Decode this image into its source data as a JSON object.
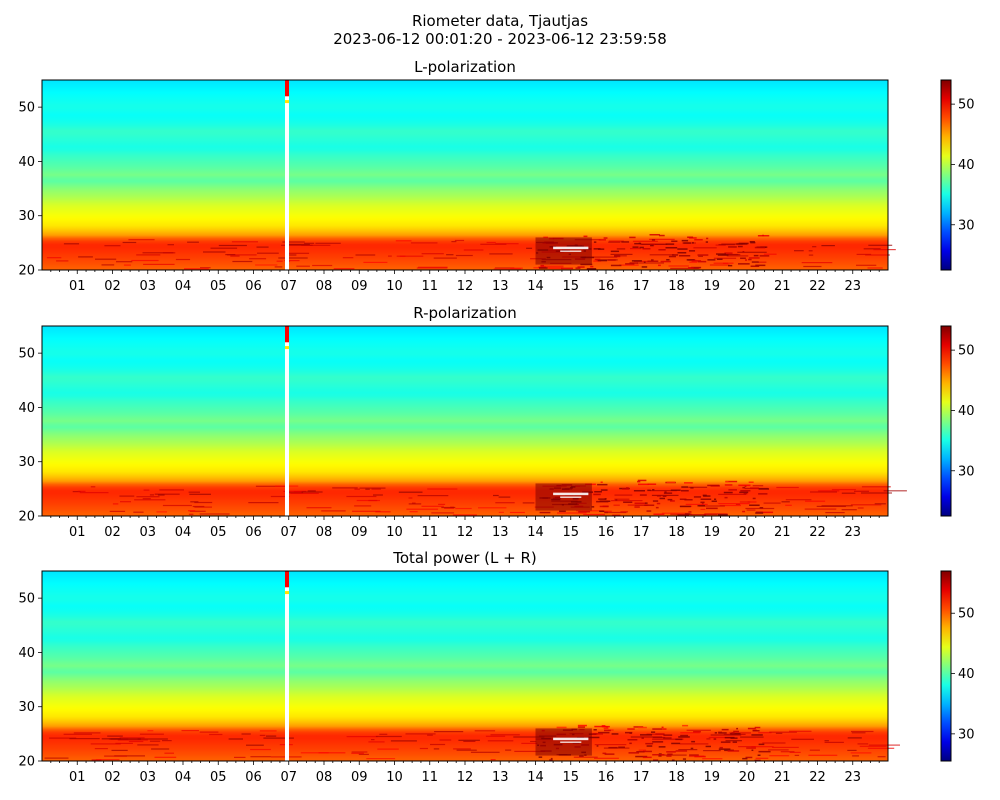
{
  "figure": {
    "title": "Riometer data, Tjautjas",
    "subtitle": "2023-06-12 00:01:20 - 2023-06-12 23:59:58"
  },
  "colors": {
    "colormap": "jet",
    "gap_color": "#ffffff"
  },
  "chart_data": [
    {
      "type": "heatmap",
      "title": "L-polarization",
      "xlabel": "",
      "ylabel": "",
      "xlim": [
        0,
        24
      ],
      "ylim": [
        20,
        55
      ],
      "x_ticks": [
        "01",
        "02",
        "03",
        "04",
        "05",
        "06",
        "07",
        "08",
        "09",
        "10",
        "11",
        "12",
        "13",
        "14",
        "15",
        "16",
        "17",
        "18",
        "19",
        "20",
        "21",
        "22",
        "23"
      ],
      "y_ticks": [
        20,
        30,
        40,
        50
      ],
      "colorbar": {
        "range": [
          22.5,
          54
        ],
        "ticks": [
          30,
          40,
          50
        ]
      },
      "gap_hour": 6.95,
      "band_profile": [
        [
          20,
          47
        ],
        [
          22,
          48
        ],
        [
          24.5,
          49
        ],
        [
          25.5,
          48
        ],
        [
          26.5,
          45
        ],
        [
          28,
          43
        ],
        [
          30,
          42
        ],
        [
          32,
          41
        ],
        [
          33,
          40
        ],
        [
          35,
          38.5
        ],
        [
          36.5,
          37
        ],
        [
          37.5,
          38
        ],
        [
          39,
          37
        ],
        [
          41,
          36
        ],
        [
          42.5,
          35
        ],
        [
          44,
          35.5
        ],
        [
          45.5,
          36
        ],
        [
          47,
          35
        ],
        [
          48.5,
          34.5
        ],
        [
          50,
          35
        ],
        [
          52,
          34.5
        ],
        [
          53.5,
          34
        ],
        [
          55,
          33.5
        ]
      ],
      "enhancement": {
        "center_hour": 15.0,
        "start_hour": 14.0,
        "end_hour": 15.6,
        "amplitude": 6
      },
      "grid": false
    },
    {
      "type": "heatmap",
      "title": "R-polarization",
      "xlabel": "",
      "ylabel": "",
      "xlim": [
        0,
        24
      ],
      "ylim": [
        20,
        55
      ],
      "x_ticks": [
        "01",
        "02",
        "03",
        "04",
        "05",
        "06",
        "07",
        "08",
        "09",
        "10",
        "11",
        "12",
        "13",
        "14",
        "15",
        "16",
        "17",
        "18",
        "19",
        "20",
        "21",
        "22",
        "23"
      ],
      "y_ticks": [
        20,
        30,
        40,
        50
      ],
      "colorbar": {
        "range": [
          22.5,
          54
        ],
        "ticks": [
          30,
          40,
          50
        ]
      },
      "gap_hour": 6.95,
      "band_profile": [
        [
          20,
          47
        ],
        [
          22,
          48
        ],
        [
          24.5,
          49
        ],
        [
          25.5,
          48
        ],
        [
          26.5,
          45
        ],
        [
          28,
          43
        ],
        [
          30,
          42
        ],
        [
          32,
          41
        ],
        [
          33,
          40
        ],
        [
          35,
          38.5
        ],
        [
          36.5,
          37
        ],
        [
          37.5,
          38
        ],
        [
          39,
          37
        ],
        [
          41,
          36
        ],
        [
          42.5,
          35
        ],
        [
          44,
          35.5
        ],
        [
          45.5,
          36
        ],
        [
          47,
          35
        ],
        [
          48.5,
          34.5
        ],
        [
          50,
          35
        ],
        [
          52,
          34.5
        ],
        [
          53.5,
          34
        ],
        [
          55,
          33.5
        ]
      ],
      "enhancement": {
        "center_hour": 15.0,
        "start_hour": 14.0,
        "end_hour": 15.6,
        "amplitude": 6
      },
      "grid": false
    },
    {
      "type": "heatmap",
      "title": "Total power (L + R)",
      "xlabel": "",
      "ylabel": "",
      "xlim": [
        0,
        24
      ],
      "ylim": [
        20,
        55
      ],
      "x_ticks": [
        "01",
        "02",
        "03",
        "04",
        "05",
        "06",
        "07",
        "08",
        "09",
        "10",
        "11",
        "12",
        "13",
        "14",
        "15",
        "16",
        "17",
        "18",
        "19",
        "20",
        "21",
        "22",
        "23"
      ],
      "y_ticks": [
        20,
        30,
        40,
        50
      ],
      "colorbar": {
        "range": [
          25.5,
          57
        ],
        "ticks": [
          30,
          40,
          50
        ]
      },
      "gap_hour": 6.95,
      "band_profile": [
        [
          20,
          50
        ],
        [
          22,
          51
        ],
        [
          24.5,
          52
        ],
        [
          25.5,
          51
        ],
        [
          26.5,
          48
        ],
        [
          28,
          46
        ],
        [
          30,
          45
        ],
        [
          32,
          44
        ],
        [
          33,
          43
        ],
        [
          35,
          41.5
        ],
        [
          36.5,
          40
        ],
        [
          37.5,
          41
        ],
        [
          39,
          40
        ],
        [
          41,
          39
        ],
        [
          42.5,
          38
        ],
        [
          44,
          38.5
        ],
        [
          45.5,
          39
        ],
        [
          47,
          38
        ],
        [
          48.5,
          37.5
        ],
        [
          50,
          38
        ],
        [
          52,
          37.5
        ],
        [
          53.5,
          37
        ],
        [
          55,
          36.5
        ]
      ],
      "enhancement": {
        "center_hour": 15.0,
        "start_hour": 14.0,
        "end_hour": 15.6,
        "amplitude": 6
      },
      "grid": false
    }
  ]
}
